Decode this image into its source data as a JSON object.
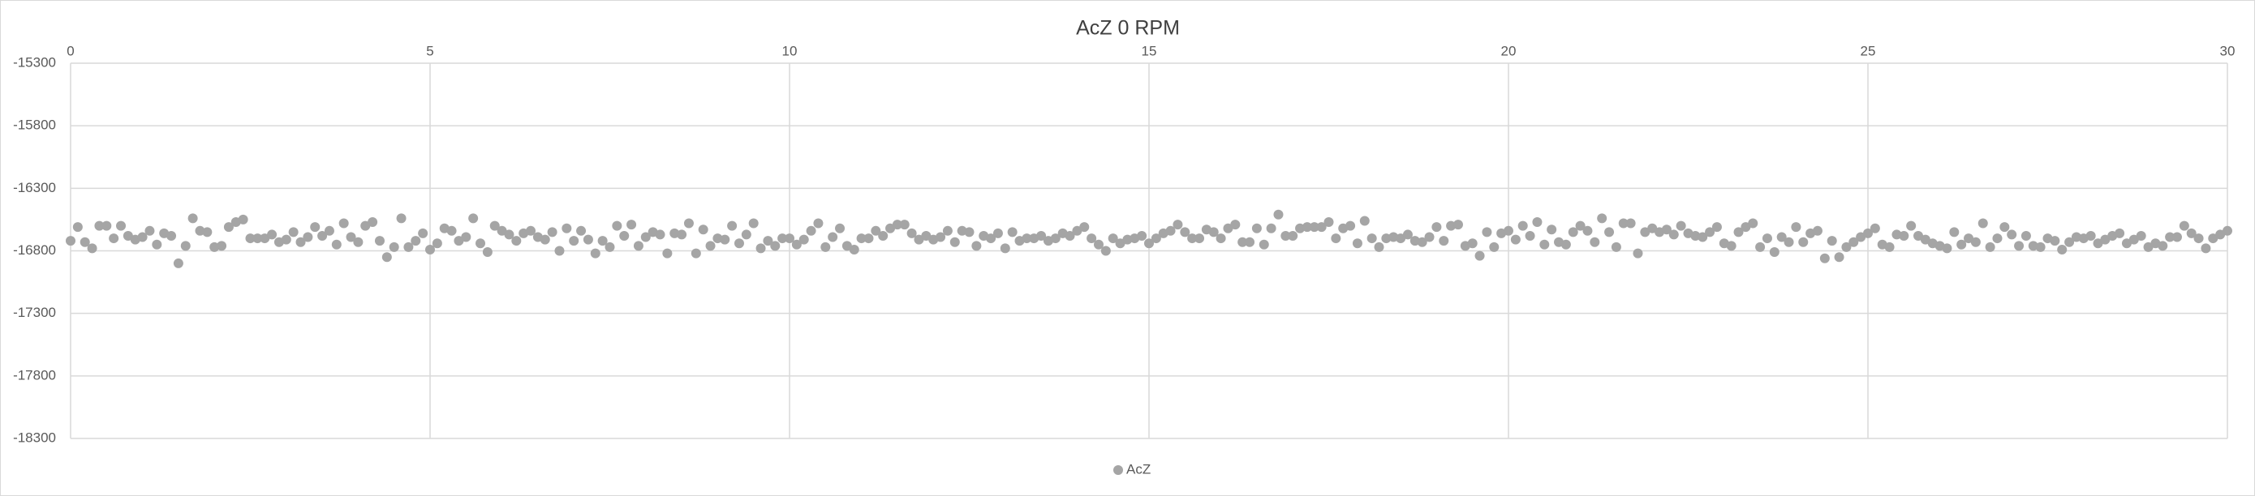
{
  "chart_data": {
    "type": "scatter",
    "title": "AcZ 0 RPM",
    "x": [
      0,
      0.1,
      0.2,
      0.3,
      0.4,
      0.5,
      0.6,
      0.7,
      0.8,
      0.9,
      1,
      1.1,
      1.2,
      1.3,
      1.4,
      1.5,
      1.6,
      1.7,
      1.8,
      1.9,
      2,
      2.1,
      2.2,
      2.3,
      2.4,
      2.5,
      2.6,
      2.7,
      2.8,
      2.9,
      3,
      3.1,
      3.2,
      3.3,
      3.4,
      3.5,
      3.6,
      3.7,
      3.8,
      3.9,
      4,
      4.1,
      4.2,
      4.3,
      4.4,
      4.5,
      4.6,
      4.7,
      4.8,
      4.9,
      5,
      5.1,
      5.2,
      5.3,
      5.4,
      5.5,
      5.6,
      5.7,
      5.8,
      5.9,
      6,
      6.1,
      6.2,
      6.3,
      6.4,
      6.5,
      6.6,
      6.7,
      6.8,
      6.9,
      7,
      7.1,
      7.2,
      7.3,
      7.4,
      7.5,
      7.6,
      7.7,
      7.8,
      7.9,
      8,
      8.1,
      8.2,
      8.3,
      8.4,
      8.5,
      8.6,
      8.7,
      8.8,
      8.9,
      9,
      9.1,
      9.2,
      9.3,
      9.4,
      9.5,
      9.6,
      9.7,
      9.8,
      9.9,
      10,
      10.1,
      10.2,
      10.3,
      10.4,
      10.5,
      10.6,
      10.7,
      10.8,
      10.9,
      11,
      11.1,
      11.2,
      11.3,
      11.4,
      11.5,
      11.6,
      11.7,
      11.8,
      11.9,
      12,
      12.1,
      12.2,
      12.3,
      12.4,
      12.5,
      12.6,
      12.7,
      12.8,
      12.9,
      13,
      13.1,
      13.2,
      13.3,
      13.4,
      13.5,
      13.6,
      13.7,
      13.8,
      13.9,
      14,
      14.1,
      14.2,
      14.3,
      14.4,
      14.5,
      14.6,
      14.7,
      14.8,
      14.9,
      15,
      15.1,
      15.2,
      15.3,
      15.4,
      15.5,
      15.6,
      15.7,
      15.8,
      15.9,
      16,
      16.1,
      16.2,
      16.3,
      16.4,
      16.5,
      16.6,
      16.7,
      16.8,
      16.9,
      17,
      17.1,
      17.2,
      17.3,
      17.4,
      17.5,
      17.6,
      17.7,
      17.8,
      17.9,
      18,
      18.1,
      18.2,
      18.3,
      18.4,
      18.5,
      18.6,
      18.7,
      18.8,
      18.9,
      19,
      19.1,
      19.2,
      19.3,
      19.4,
      19.5,
      19.6,
      19.7,
      19.8,
      19.9,
      20,
      20.1,
      20.2,
      20.3,
      20.4,
      20.5,
      20.6,
      20.7,
      20.8,
      20.9,
      21,
      21.1,
      21.2,
      21.3,
      21.4,
      21.5,
      21.6,
      21.7,
      21.8,
      21.9,
      22,
      22.1,
      22.2,
      22.3,
      22.4,
      22.5,
      22.6,
      22.7,
      22.8,
      22.9,
      23,
      23.1,
      23.2,
      23.3,
      23.4,
      23.5,
      23.6,
      23.7,
      23.8,
      23.9,
      24,
      24.1,
      24.2,
      24.3,
      24.4,
      24.5,
      24.6,
      24.7,
      24.8,
      24.9,
      25,
      25.1,
      25.2,
      25.3,
      25.4,
      25.5,
      25.6,
      25.7,
      25.8,
      25.9,
      26,
      26.1,
      26.2,
      26.3,
      26.4,
      26.5,
      26.6,
      26.7,
      26.8,
      26.9,
      27,
      27.1,
      27.2,
      27.3,
      27.4,
      27.5,
      27.6,
      27.7,
      27.8,
      27.9,
      28,
      28.1,
      28.2,
      28.3,
      28.4,
      28.5,
      28.6,
      28.7,
      28.8,
      28.9,
      29,
      29.1,
      29.2,
      29.3,
      29.4,
      29.5,
      29.6,
      29.7,
      29.8,
      29.9,
      30
    ],
    "series": [
      {
        "name": "AcZ",
        "color": "#a5a5a5",
        "values": [
          -16720,
          -16610,
          -16730,
          -16780,
          -16600,
          -16600,
          -16700,
          -16600,
          -16680,
          -16710,
          -16690,
          -16640,
          -16750,
          -16660,
          -16680,
          -16900,
          -16760,
          -16540,
          -16640,
          -16650,
          -16770,
          -16760,
          -16610,
          -16570,
          -16550,
          -16700,
          -16700,
          -16700,
          -16670,
          -16730,
          -16710,
          -16650,
          -16730,
          -16690,
          -16610,
          -16680,
          -16640,
          -16750,
          -16580,
          -16690,
          -16730,
          -16600,
          -16570,
          -16720,
          -16850,
          -16770,
          -16540,
          -16770,
          -16720,
          -16660,
          -16790,
          -16740,
          -16620,
          -16640,
          -16720,
          -16690,
          -16540,
          -16740,
          -16810,
          -16600,
          -16640,
          -16670,
          -16720,
          -16660,
          -16640,
          -16690,
          -16710,
          -16650,
          -16800,
          -16620,
          -16720,
          -16640,
          -16710,
          -16820,
          -16720,
          -16770,
          -16600,
          -16680,
          -16590,
          -16760,
          -16690,
          -16650,
          -16670,
          -16820,
          -16660,
          -16670,
          -16580,
          -16820,
          -16630,
          -16760,
          -16700,
          -16710,
          -16600,
          -16740,
          -16670,
          -16580,
          -16780,
          -16720,
          -16760,
          -16700,
          -16700,
          -16750,
          -16710,
          -16640,
          -16580,
          -16770,
          -16690,
          -16620,
          -16760,
          -16790,
          -16700,
          -16700,
          -16640,
          -16680,
          -16620,
          -16590,
          -16590,
          -16660,
          -16710,
          -16680,
          -16710,
          -16690,
          -16640,
          -16730,
          -16640,
          -16650,
          -16760,
          -16680,
          -16700,
          -16660,
          -16780,
          -16650,
          -16720,
          -16700,
          -16700,
          -16680,
          -16720,
          -16700,
          -16660,
          -16680,
          -16640,
          -16610,
          -16700,
          -16750,
          -16800,
          -16700,
          -16740,
          -16710,
          -16700,
          -16680,
          -16740,
          -16700,
          -16660,
          -16640,
          -16590,
          -16650,
          -16700,
          -16700,
          -16630,
          -16650,
          -16700,
          -16620,
          -16590,
          -16730,
          -16730,
          -16620,
          -16750,
          -16620,
          -16510,
          -16680,
          -16680,
          -16620,
          -16610,
          -16610,
          -16610,
          -16570,
          -16700,
          -16620,
          -16600,
          -16740,
          -16560,
          -16700,
          -16770,
          -16700,
          -16690,
          -16700,
          -16670,
          -16720,
          -16730,
          -16690,
          -16610,
          -16720,
          -16600,
          -16590,
          -16760,
          -16740,
          -16840,
          -16650,
          -16770,
          -16660,
          -16640,
          -16710,
          -16600,
          -16680,
          -16570,
          -16750,
          -16630,
          -16730,
          -16750,
          -16650,
          -16600,
          -16640,
          -16730,
          -16540,
          -16650,
          -16770,
          -16580,
          -16580,
          -16820,
          -16650,
          -16620,
          -16650,
          -16630,
          -16670,
          -16600,
          -16660,
          -16680,
          -16690,
          -16650,
          -16610,
          -16740,
          -16760,
          -16650,
          -16610,
          -16580,
          -16770,
          -16700,
          -16810,
          -16690,
          -16730,
          -16610,
          -16730,
          -16660,
          -16640,
          -16860,
          -16720,
          -16850,
          -16770,
          -16730,
          -16690,
          -16660,
          -16620,
          -16750,
          -16770,
          -16670,
          -16680,
          -16600,
          -16680,
          -16710,
          -16740,
          -16760,
          -16780,
          -16650,
          -16750,
          -16700,
          -16730,
          -16580,
          -16770,
          -16700,
          -16610,
          -16670,
          -16760,
          -16680,
          -16760,
          -16770,
          -16700,
          -16720,
          -16790,
          -16730,
          -16690,
          -16700,
          -16680,
          -16740,
          -16710,
          -16680,
          -16660,
          -16740,
          -16710,
          -16680,
          -16770,
          -16740,
          -16760,
          -16690,
          -16690,
          -16600,
          -16660,
          -16700,
          -16780,
          -16700,
          -16670,
          -16640
        ]
      }
    ],
    "xlim": [
      0,
      30
    ],
    "xticks": [
      0,
      5,
      10,
      15,
      20,
      25,
      30
    ],
    "ylim": [
      -18300,
      -15300
    ],
    "yticks": [
      -18300,
      -17800,
      -17300,
      -16800,
      -16300,
      -15800,
      -15300
    ],
    "grid": true,
    "legend": "bottom"
  }
}
